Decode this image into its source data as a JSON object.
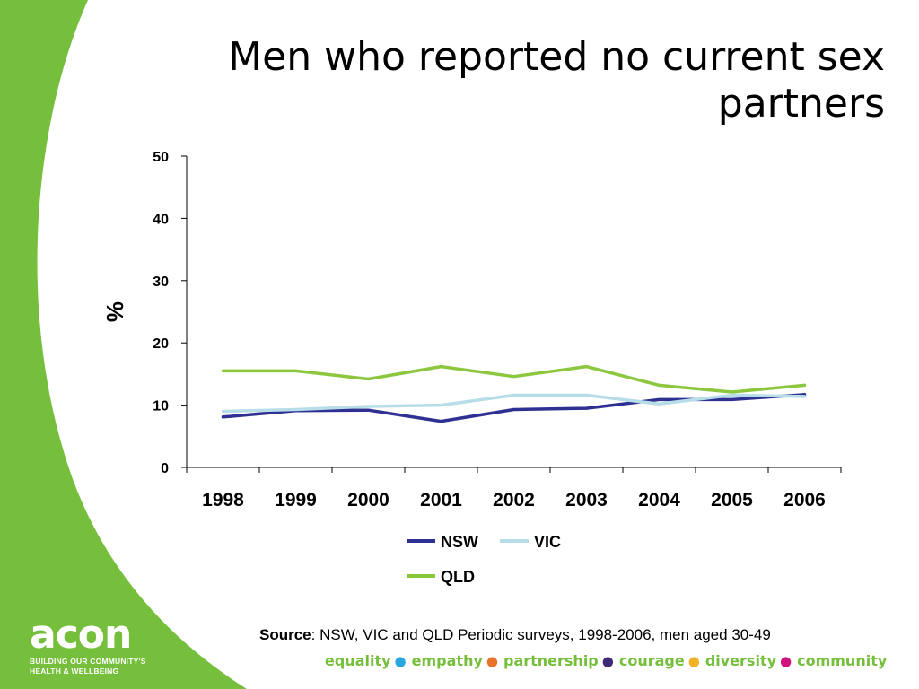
{
  "slide": {
    "title": "Men who reported no current sex partners",
    "source_label": "Source",
    "source_text": ": NSW, VIC and QLD Periodic surveys, 1998-2006, men aged 30-49"
  },
  "brand": {
    "logo_text": "acon",
    "tagline_line1": "BUILDING OUR COMMUNITY'S",
    "tagline_line2": "HEALTH & WELLBEING",
    "green": "#76bf3c",
    "values": [
      {
        "word": "equality",
        "dot_color": "#29a8e0"
      },
      {
        "word": "empathy",
        "dot_color": "#e8742c"
      },
      {
        "word": "partnership",
        "dot_color": "#3f2a78"
      },
      {
        "word": "courage",
        "dot_color": "#f0b323"
      },
      {
        "word": "diversity",
        "dot_color": "#d0137a"
      },
      {
        "word": "community",
        "dot_color": null
      }
    ]
  },
  "chart_data": {
    "type": "line",
    "title": "",
    "xlabel": "",
    "ylabel": "%",
    "ylim": [
      0,
      50
    ],
    "yticks": [
      0,
      10,
      20,
      30,
      40,
      50
    ],
    "categories": [
      "1998",
      "1999",
      "2000",
      "2001",
      "2002",
      "2003",
      "2004",
      "2005",
      "2006"
    ],
    "grid": false,
    "legend": "bottom",
    "series": [
      {
        "name": "NSW",
        "color": "#2e3192",
        "values": [
          8.1,
          9.1,
          9.2,
          7.4,
          9.3,
          9.5,
          10.9,
          10.9,
          11.7
        ]
      },
      {
        "name": "VIC",
        "color": "#b7dde8",
        "values": [
          9.0,
          9.3,
          9.8,
          10.0,
          11.6,
          11.6,
          10.2,
          11.6,
          11.4
        ]
      },
      {
        "name": "QLD",
        "color": "#8dc63f",
        "values": [
          15.5,
          15.5,
          14.2,
          16.2,
          14.6,
          16.2,
          13.2,
          12.1,
          13.2
        ]
      }
    ]
  }
}
